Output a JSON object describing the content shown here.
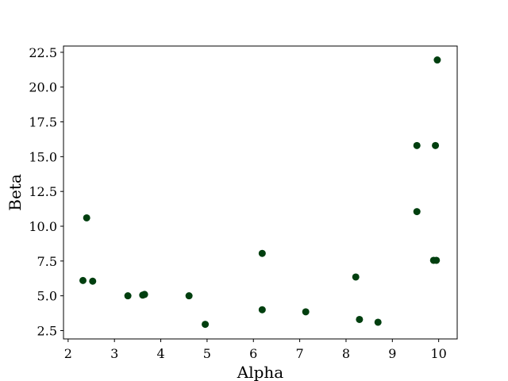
{
  "chart_data": {
    "type": "scatter",
    "title": "",
    "xlabel": "Alpha",
    "ylabel": "Beta",
    "xlim": [
      1.9,
      10.4
    ],
    "ylim": [
      1.9,
      22.95
    ],
    "xticks": [
      2,
      3,
      4,
      5,
      6,
      7,
      8,
      9,
      10
    ],
    "xtick_labels": [
      "2",
      "3",
      "4",
      "5",
      "6",
      "7",
      "8",
      "9",
      "10"
    ],
    "yticks": [
      2.5,
      5.0,
      7.5,
      10.0,
      12.5,
      15.0,
      17.5,
      20.0,
      22.5
    ],
    "ytick_labels": [
      "2.5",
      "5.0",
      "7.5",
      "10.0",
      "12.5",
      "15.0",
      "17.5",
      "20.0",
      "22.5"
    ],
    "grid": false,
    "legend": "none",
    "marker_color": "#003f0f",
    "series": [
      {
        "x": [
          2.32,
          2.4,
          2.53,
          3.29,
          3.61,
          3.65,
          4.61,
          4.96,
          6.19,
          6.19,
          7.13,
          8.21,
          8.29,
          8.69,
          9.53,
          9.53,
          9.89,
          9.93,
          9.95,
          9.97
        ],
        "y": [
          6.1,
          10.6,
          6.05,
          5.0,
          5.05,
          5.1,
          5.0,
          2.95,
          8.05,
          4.0,
          3.85,
          6.35,
          3.3,
          3.1,
          15.8,
          11.05,
          7.55,
          15.8,
          7.55,
          21.95
        ]
      }
    ]
  }
}
